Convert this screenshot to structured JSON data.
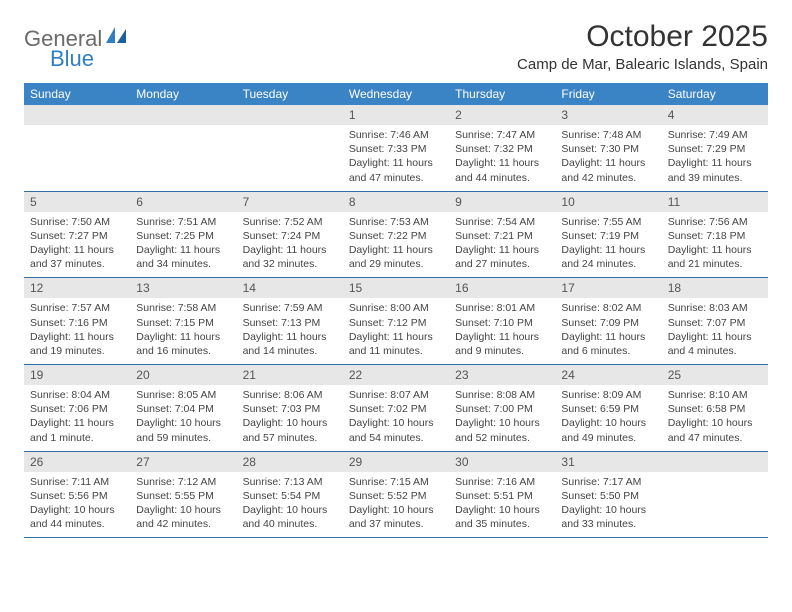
{
  "logo": {
    "text1": "General",
    "text2": "Blue"
  },
  "title": "October 2025",
  "location": "Camp de Mar, Balearic Islands, Spain",
  "colors": {
    "header_bg": "#3a83c4",
    "header_text": "#ffffff",
    "daynum_bg": "#e7e7e7",
    "row_border": "#2f6fa8",
    "logo_blue": "#2f7fc2",
    "logo_gray": "#6b6b6b"
  },
  "weekdays": [
    "Sunday",
    "Monday",
    "Tuesday",
    "Wednesday",
    "Thursday",
    "Friday",
    "Saturday"
  ],
  "weeks": [
    [
      {
        "n": "",
        "sr": "",
        "ss": "",
        "dl": ""
      },
      {
        "n": "",
        "sr": "",
        "ss": "",
        "dl": ""
      },
      {
        "n": "",
        "sr": "",
        "ss": "",
        "dl": ""
      },
      {
        "n": "1",
        "sr": "Sunrise: 7:46 AM",
        "ss": "Sunset: 7:33 PM",
        "dl": "Daylight: 11 hours and 47 minutes."
      },
      {
        "n": "2",
        "sr": "Sunrise: 7:47 AM",
        "ss": "Sunset: 7:32 PM",
        "dl": "Daylight: 11 hours and 44 minutes."
      },
      {
        "n": "3",
        "sr": "Sunrise: 7:48 AM",
        "ss": "Sunset: 7:30 PM",
        "dl": "Daylight: 11 hours and 42 minutes."
      },
      {
        "n": "4",
        "sr": "Sunrise: 7:49 AM",
        "ss": "Sunset: 7:29 PM",
        "dl": "Daylight: 11 hours and 39 minutes."
      }
    ],
    [
      {
        "n": "5",
        "sr": "Sunrise: 7:50 AM",
        "ss": "Sunset: 7:27 PM",
        "dl": "Daylight: 11 hours and 37 minutes."
      },
      {
        "n": "6",
        "sr": "Sunrise: 7:51 AM",
        "ss": "Sunset: 7:25 PM",
        "dl": "Daylight: 11 hours and 34 minutes."
      },
      {
        "n": "7",
        "sr": "Sunrise: 7:52 AM",
        "ss": "Sunset: 7:24 PM",
        "dl": "Daylight: 11 hours and 32 minutes."
      },
      {
        "n": "8",
        "sr": "Sunrise: 7:53 AM",
        "ss": "Sunset: 7:22 PM",
        "dl": "Daylight: 11 hours and 29 minutes."
      },
      {
        "n": "9",
        "sr": "Sunrise: 7:54 AM",
        "ss": "Sunset: 7:21 PM",
        "dl": "Daylight: 11 hours and 27 minutes."
      },
      {
        "n": "10",
        "sr": "Sunrise: 7:55 AM",
        "ss": "Sunset: 7:19 PM",
        "dl": "Daylight: 11 hours and 24 minutes."
      },
      {
        "n": "11",
        "sr": "Sunrise: 7:56 AM",
        "ss": "Sunset: 7:18 PM",
        "dl": "Daylight: 11 hours and 21 minutes."
      }
    ],
    [
      {
        "n": "12",
        "sr": "Sunrise: 7:57 AM",
        "ss": "Sunset: 7:16 PM",
        "dl": "Daylight: 11 hours and 19 minutes."
      },
      {
        "n": "13",
        "sr": "Sunrise: 7:58 AM",
        "ss": "Sunset: 7:15 PM",
        "dl": "Daylight: 11 hours and 16 minutes."
      },
      {
        "n": "14",
        "sr": "Sunrise: 7:59 AM",
        "ss": "Sunset: 7:13 PM",
        "dl": "Daylight: 11 hours and 14 minutes."
      },
      {
        "n": "15",
        "sr": "Sunrise: 8:00 AM",
        "ss": "Sunset: 7:12 PM",
        "dl": "Daylight: 11 hours and 11 minutes."
      },
      {
        "n": "16",
        "sr": "Sunrise: 8:01 AM",
        "ss": "Sunset: 7:10 PM",
        "dl": "Daylight: 11 hours and 9 minutes."
      },
      {
        "n": "17",
        "sr": "Sunrise: 8:02 AM",
        "ss": "Sunset: 7:09 PM",
        "dl": "Daylight: 11 hours and 6 minutes."
      },
      {
        "n": "18",
        "sr": "Sunrise: 8:03 AM",
        "ss": "Sunset: 7:07 PM",
        "dl": "Daylight: 11 hours and 4 minutes."
      }
    ],
    [
      {
        "n": "19",
        "sr": "Sunrise: 8:04 AM",
        "ss": "Sunset: 7:06 PM",
        "dl": "Daylight: 11 hours and 1 minute."
      },
      {
        "n": "20",
        "sr": "Sunrise: 8:05 AM",
        "ss": "Sunset: 7:04 PM",
        "dl": "Daylight: 10 hours and 59 minutes."
      },
      {
        "n": "21",
        "sr": "Sunrise: 8:06 AM",
        "ss": "Sunset: 7:03 PM",
        "dl": "Daylight: 10 hours and 57 minutes."
      },
      {
        "n": "22",
        "sr": "Sunrise: 8:07 AM",
        "ss": "Sunset: 7:02 PM",
        "dl": "Daylight: 10 hours and 54 minutes."
      },
      {
        "n": "23",
        "sr": "Sunrise: 8:08 AM",
        "ss": "Sunset: 7:00 PM",
        "dl": "Daylight: 10 hours and 52 minutes."
      },
      {
        "n": "24",
        "sr": "Sunrise: 8:09 AM",
        "ss": "Sunset: 6:59 PM",
        "dl": "Daylight: 10 hours and 49 minutes."
      },
      {
        "n": "25",
        "sr": "Sunrise: 8:10 AM",
        "ss": "Sunset: 6:58 PM",
        "dl": "Daylight: 10 hours and 47 minutes."
      }
    ],
    [
      {
        "n": "26",
        "sr": "Sunrise: 7:11 AM",
        "ss": "Sunset: 5:56 PM",
        "dl": "Daylight: 10 hours and 44 minutes."
      },
      {
        "n": "27",
        "sr": "Sunrise: 7:12 AM",
        "ss": "Sunset: 5:55 PM",
        "dl": "Daylight: 10 hours and 42 minutes."
      },
      {
        "n": "28",
        "sr": "Sunrise: 7:13 AM",
        "ss": "Sunset: 5:54 PM",
        "dl": "Daylight: 10 hours and 40 minutes."
      },
      {
        "n": "29",
        "sr": "Sunrise: 7:15 AM",
        "ss": "Sunset: 5:52 PM",
        "dl": "Daylight: 10 hours and 37 minutes."
      },
      {
        "n": "30",
        "sr": "Sunrise: 7:16 AM",
        "ss": "Sunset: 5:51 PM",
        "dl": "Daylight: 10 hours and 35 minutes."
      },
      {
        "n": "31",
        "sr": "Sunrise: 7:17 AM",
        "ss": "Sunset: 5:50 PM",
        "dl": "Daylight: 10 hours and 33 minutes."
      },
      {
        "n": "",
        "sr": "",
        "ss": "",
        "dl": ""
      }
    ]
  ]
}
